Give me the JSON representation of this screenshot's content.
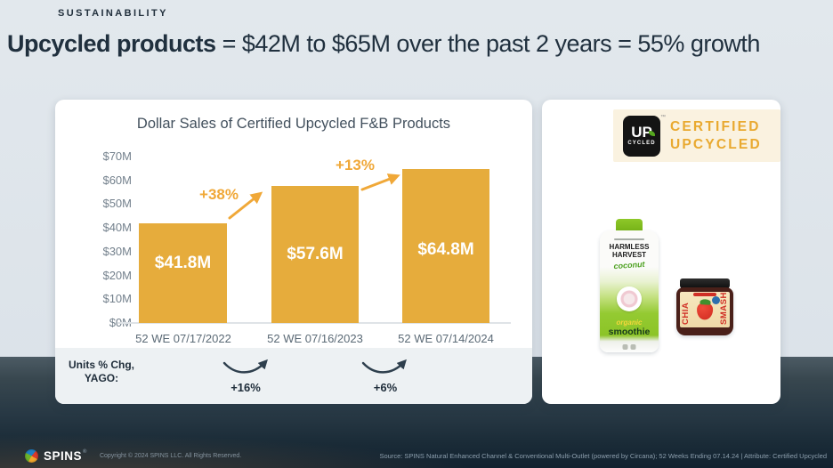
{
  "header": {
    "kicker": "SUSTAINABILITY",
    "title_bold": "Upcycled products",
    "title_rest": " = $42M to $65M over the past 2 years = 55% growth"
  },
  "chart_data": {
    "type": "bar",
    "title": "Dollar Sales of Certified Upcycled F&B Products",
    "categories": [
      "52 WE 07/17/2022",
      "52 WE 07/16/2023",
      "52 WE 07/14/2024"
    ],
    "values": [
      41.8,
      57.6,
      64.8
    ],
    "value_labels": [
      "$41.8M",
      "$57.6M",
      "$64.8M"
    ],
    "growth_labels": [
      "+38%",
      "+13%"
    ],
    "yticks": [
      "$70M",
      "$60M",
      "$50M",
      "$40M",
      "$30M",
      "$20M",
      "$10M",
      "$0M"
    ],
    "ylim": [
      0,
      70
    ],
    "xlabel": "",
    "ylabel": "",
    "grid": false,
    "legend": false,
    "bar_color": "#e6ac3c",
    "units_pct_chg": {
      "label_line1": "Units % Chg,",
      "label_line2": "YAGO:",
      "values": [
        "+16%",
        "+6%"
      ]
    }
  },
  "badge": {
    "logo_line1": "UP",
    "logo_line2": "CYCLED",
    "trademark": "™",
    "text_line1": "CERTIFIED",
    "text_line2": "UPCYCLED",
    "bg_color": "#faf2e0",
    "text_color": "#e9a930"
  },
  "products": [
    {
      "name": "Harmless Harvest coconut organic smoothie",
      "brand_line1": "HARMLESS",
      "brand_line2": "HARVEST",
      "flavor": "coconut",
      "desc_line1": "organic",
      "desc_line2": "smoothie"
    },
    {
      "name": "Chia Smash strawberry jam",
      "side_left": "CHIA",
      "side_right": "SMASH"
    }
  ],
  "footer": {
    "brand": "SPINS",
    "registered": "®",
    "copyright": "Copyright © 2024 SPINS LLC. All Rights Reserved.",
    "source": "Source:  SPINS Natural Enhanced Channel & Conventional Multi-Outlet (powered by Circana); 52 Weeks Ending 07.14.24 | Attribute: Certified Upcycled"
  },
  "colors": {
    "accent_gold": "#f0a838",
    "bar_gold": "#e6ac3c",
    "navy_text": "#22303d",
    "bg_light": "#dde4ea",
    "bg_dark": "#1a2b37"
  }
}
